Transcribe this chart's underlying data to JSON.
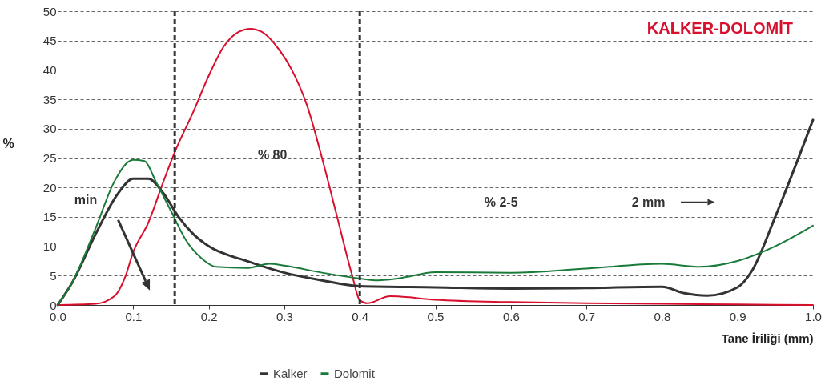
{
  "chart_data": {
    "type": "line",
    "title": "KALKER-DOLOMİT",
    "xlabel": "Tane İriliği (mm)",
    "ylabel": "%",
    "xlim": [
      0,
      1
    ],
    "ylim": [
      0,
      50
    ],
    "xticks": [
      {
        "value": 0,
        "label": "0.0"
      },
      {
        "value": 0.1,
        "label": "0.1"
      },
      {
        "value": 0.2,
        "label": "0.2"
      },
      {
        "value": 0.3,
        "label": "0.3"
      },
      {
        "value": 0.4,
        "label": "0.4"
      },
      {
        "value": 0.5,
        "label": "0.5"
      },
      {
        "value": 0.6,
        "label": "0.6"
      },
      {
        "value": 0.7,
        "label": "0.7"
      },
      {
        "value": 0.8,
        "label": "0.8"
      },
      {
        "value": 0.9,
        "label": "0.9"
      },
      {
        "value": 1,
        "label": "1.0"
      }
    ],
    "yticks": [
      0,
      5,
      10,
      15,
      20,
      25,
      30,
      35,
      40,
      45,
      50
    ],
    "grid": "y",
    "legend": "bottom",
    "marker": "none",
    "line_style": "solid",
    "series": [
      {
        "color": "#d8102e",
        "x": [
          0,
          0.05,
          0.075,
          0.09,
          0.1,
          0.12,
          0.14,
          0.155,
          0.18,
          0.2,
          0.22,
          0.24,
          0.255,
          0.27,
          0.29,
          0.31,
          0.33,
          0.35,
          0.37,
          0.39,
          0.4,
          0.41,
          0.44,
          0.5,
          0.6,
          0.7,
          0.8,
          0.9,
          1.0
        ],
        "values": [
          0,
          0.2,
          1.5,
          5,
          9,
          14,
          21,
          26,
          33,
          39,
          44,
          46.5,
          47,
          46.5,
          44,
          40,
          34,
          25,
          15,
          5,
          0.8,
          0.3,
          1.5,
          0.9,
          0.5,
          0.3,
          0.2,
          0.1,
          0
        ]
      },
      {
        "name": "Kalker",
        "color": "#333333",
        "x": [
          0,
          0.02,
          0.05,
          0.08,
          0.1,
          0.12,
          0.14,
          0.16,
          0.18,
          0.2,
          0.25,
          0.3,
          0.35,
          0.4,
          0.5,
          0.6,
          0.7,
          0.8,
          0.83,
          0.86,
          0.9,
          0.92,
          0.95,
          1.0
        ],
        "values": [
          0,
          4,
          12,
          19,
          21.5,
          21.5,
          19,
          15,
          12,
          10,
          7.5,
          5.5,
          4.2,
          3.2,
          3,
          2.8,
          2.9,
          3.1,
          2,
          1.6,
          3,
          6,
          15,
          31.5
        ]
      },
      {
        "name": "Dolomit",
        "color": "#1a7a3a",
        "x": [
          0,
          0.02,
          0.05,
          0.075,
          0.1,
          0.115,
          0.13,
          0.15,
          0.17,
          0.19,
          0.21,
          0.25,
          0.28,
          0.3,
          0.35,
          0.4,
          0.42,
          0.45,
          0.5,
          0.6,
          0.7,
          0.8,
          0.85,
          0.9,
          0.95,
          1.0
        ],
        "values": [
          0,
          4,
          13,
          21,
          24.7,
          24.5,
          21,
          16,
          11,
          8,
          6.5,
          6.3,
          7,
          6.7,
          5.5,
          4.5,
          4.2,
          4.5,
          5.6,
          5.5,
          6.2,
          7,
          6.5,
          7.5,
          10,
          13.5
        ]
      }
    ],
    "ref_lines": [
      {
        "axis": "x",
        "value": 0.155,
        "color": "#333333",
        "line_style": "dashed"
      },
      {
        "axis": "x",
        "value": 0.4,
        "color": "#333333",
        "line_style": "dashed"
      }
    ],
    "annotations": [
      "min",
      "% 80",
      "% 2-5",
      "2 mm"
    ]
  }
}
